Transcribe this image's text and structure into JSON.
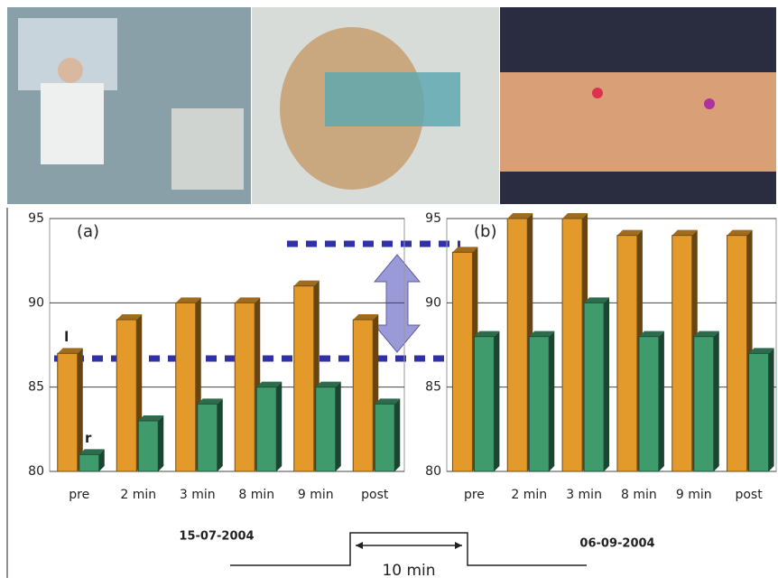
{
  "chart_data": [
    {
      "type": "bar",
      "label": "(a)",
      "categories": [
        "pre",
        "2 min",
        "3 min",
        "8 min",
        "9 min",
        "post"
      ],
      "series": [
        {
          "name": "l",
          "color": "#e39a2a",
          "values": [
            87,
            89,
            90,
            90,
            91,
            89
          ]
        },
        {
          "name": "r",
          "color": "#3f9a6c",
          "values": [
            81,
            83,
            84,
            85,
            85,
            84
          ]
        }
      ],
      "ylim": [
        80,
        95
      ],
      "yticks": [
        80,
        85,
        90,
        95
      ],
      "grid": true
    },
    {
      "type": "bar",
      "label": "(b)",
      "categories": [
        "pre",
        "2 min",
        "3 min",
        "8 min",
        "9 min",
        "post"
      ],
      "series": [
        {
          "color": "#e39a2a",
          "values": [
            93,
            95,
            95,
            94,
            94,
            94
          ]
        },
        {
          "color": "#3f9a6c",
          "values": [
            88,
            88,
            90,
            88,
            88,
            87
          ]
        }
      ],
      "ylim": [
        80,
        95
      ],
      "yticks": [
        80,
        85,
        90,
        95
      ],
      "grid": true
    }
  ],
  "timeline": {
    "start": "15-07-2004",
    "end": "06-09-2004",
    "duration": "10 min"
  }
}
